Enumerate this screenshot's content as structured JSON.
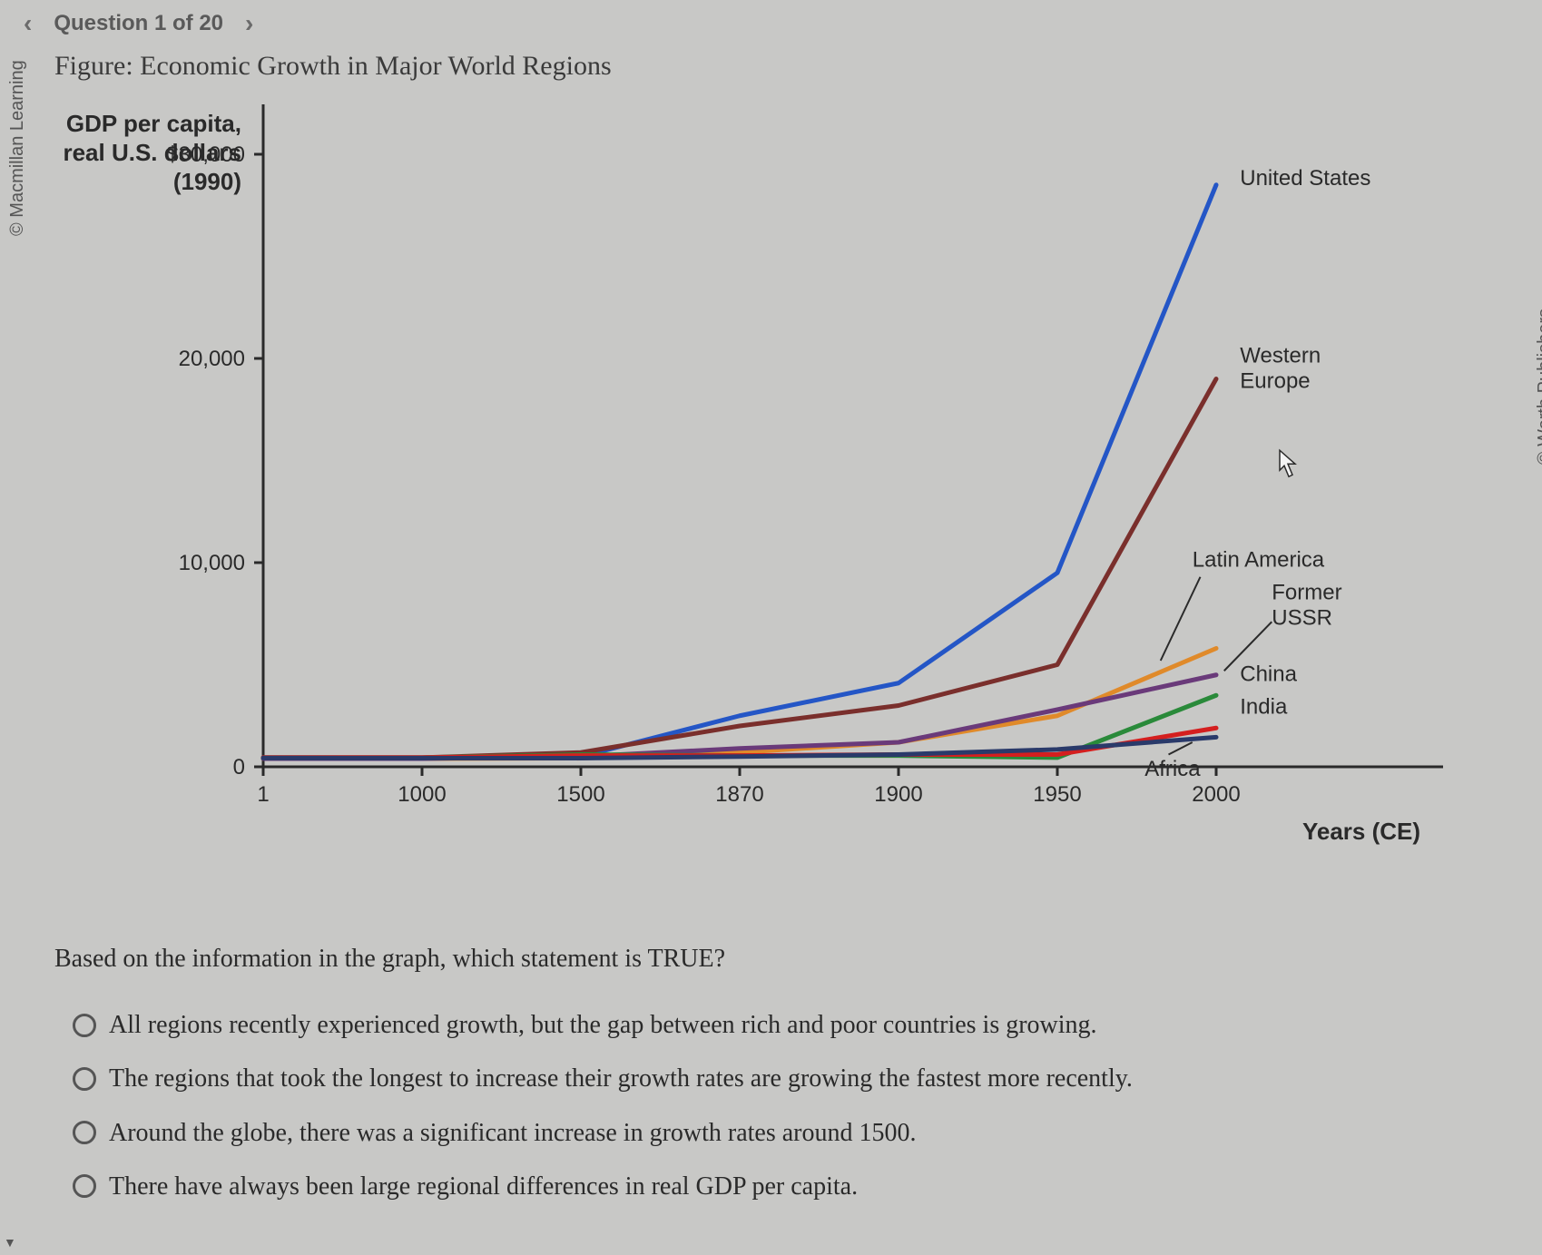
{
  "nav": {
    "prev_glyph": "‹",
    "next_glyph": "›",
    "counter_text": "Question 1 of 20"
  },
  "figure_title": "Figure: Economic Growth in Major World Regions",
  "credits": {
    "left": "© Macmillan Learning",
    "right": "© Worth Publishers"
  },
  "chart": {
    "type": "line",
    "y_axis": {
      "title_line1": "GDP per capita,",
      "title_line2": "real U.S. dollars",
      "title_line3": "(1990)",
      "title_fontsize": 26,
      "title_weight": "bold",
      "ticks": [
        {
          "value": 30000,
          "label": "$30,000"
        },
        {
          "value": 20000,
          "label": "20,000"
        },
        {
          "value": 10000,
          "label": "10,000"
        },
        {
          "value": 0,
          "label": "0"
        }
      ],
      "ylim": [
        0,
        32000
      ],
      "tick_fontsize": 24
    },
    "x_axis": {
      "title": "Years (CE)",
      "title_fontsize": 26,
      "title_weight": "bold",
      "ticks": [
        "1",
        "1000",
        "1500",
        "1870",
        "1900",
        "1950",
        "2000"
      ],
      "tick_fontsize": 24
    },
    "axis_color": "#2a2a2a",
    "axis_width": 3,
    "tick_length": 10,
    "background_color": "#c8c8c6",
    "line_width": 5,
    "series": [
      {
        "name": "United States",
        "color": "#2456c6",
        "label_pos_idx": 6.15,
        "label_pos_val": 28500,
        "points": [
          {
            "idx": 0,
            "val": 450
          },
          {
            "idx": 1,
            "val": 450
          },
          {
            "idx": 2,
            "val": 500
          },
          {
            "idx": 3,
            "val": 2500
          },
          {
            "idx": 4,
            "val": 4100
          },
          {
            "idx": 5,
            "val": 9500
          },
          {
            "idx": 6,
            "val": 28500
          }
        ]
      },
      {
        "name": "Western Europe",
        "color": "#7a2f2c",
        "label_pos_idx": 6.15,
        "label_pos_val": 19800,
        "label_two_lines": true,
        "label_line1": "Western",
        "label_line2": "Europe",
        "points": [
          {
            "idx": 0,
            "val": 450
          },
          {
            "idx": 1,
            "val": 450
          },
          {
            "idx": 2,
            "val": 700
          },
          {
            "idx": 3,
            "val": 2000
          },
          {
            "idx": 4,
            "val": 3000
          },
          {
            "idx": 5,
            "val": 5000
          },
          {
            "idx": 6,
            "val": 19000
          }
        ]
      },
      {
        "name": "Latin America",
        "color": "#e08a2a",
        "label_pos_idx": 5.85,
        "label_pos_val": 9800,
        "points": [
          {
            "idx": 0,
            "val": 400
          },
          {
            "idx": 1,
            "val": 400
          },
          {
            "idx": 2,
            "val": 420
          },
          {
            "idx": 3,
            "val": 700
          },
          {
            "idx": 4,
            "val": 1200
          },
          {
            "idx": 5,
            "val": 2500
          },
          {
            "idx": 6,
            "val": 5800
          }
        ]
      },
      {
        "name": "Former USSR",
        "color": "#6a3a7a",
        "label_pos_idx": 6.35,
        "label_pos_val": 8200,
        "label_two_lines": true,
        "label_line1": "Former",
        "label_line2": "USSR",
        "points": [
          {
            "idx": 0,
            "val": 400
          },
          {
            "idx": 1,
            "val": 400
          },
          {
            "idx": 2,
            "val": 500
          },
          {
            "idx": 3,
            "val": 900
          },
          {
            "idx": 4,
            "val": 1200
          },
          {
            "idx": 5,
            "val": 2800
          },
          {
            "idx": 6,
            "val": 4500
          }
        ]
      },
      {
        "name": "China",
        "color": "#2a8a3a",
        "label_pos_idx": 6.15,
        "label_pos_val": 4200,
        "points": [
          {
            "idx": 0,
            "val": 450
          },
          {
            "idx": 1,
            "val": 450
          },
          {
            "idx": 2,
            "val": 600
          },
          {
            "idx": 3,
            "val": 550
          },
          {
            "idx": 4,
            "val": 550
          },
          {
            "idx": 5,
            "val": 450
          },
          {
            "idx": 6,
            "val": 3500
          }
        ]
      },
      {
        "name": "India",
        "color": "#d41f1f",
        "label_pos_idx": 6.15,
        "label_pos_val": 2600,
        "points": [
          {
            "idx": 0,
            "val": 450
          },
          {
            "idx": 1,
            "val": 450
          },
          {
            "idx": 2,
            "val": 550
          },
          {
            "idx": 3,
            "val": 550
          },
          {
            "idx": 4,
            "val": 600
          },
          {
            "idx": 5,
            "val": 600
          },
          {
            "idx": 6,
            "val": 1900
          }
        ]
      },
      {
        "name": "Africa",
        "color": "#2a3a6a",
        "label_pos_idx": 5.55,
        "label_pos_val": 900,
        "label_below": true,
        "points": [
          {
            "idx": 0,
            "val": 430
          },
          {
            "idx": 1,
            "val": 420
          },
          {
            "idx": 2,
            "val": 420
          },
          {
            "idx": 3,
            "val": 500
          },
          {
            "idx": 4,
            "val": 600
          },
          {
            "idx": 5,
            "val": 850
          },
          {
            "idx": 6,
            "val": 1450
          }
        ]
      }
    ],
    "leader_lines": [
      {
        "from_idx": 5.9,
        "from_val": 9300,
        "to_idx": 5.65,
        "to_val": 5200,
        "color": "#2a2a2a"
      },
      {
        "from_idx": 6.35,
        "from_val": 7100,
        "to_idx": 6.05,
        "to_val": 4700,
        "color": "#2a2a2a"
      },
      {
        "from_idx": 5.7,
        "from_val": 600,
        "to_idx": 5.85,
        "to_val": 1200,
        "color": "#2a2a2a"
      }
    ],
    "cursor_arrow": {
      "idx": 6.4,
      "val": 15500
    }
  },
  "question": {
    "prompt": "Based on the information in the graph, which statement is TRUE?",
    "options": [
      "All regions recently experienced growth, but the gap between rich and poor countries is growing.",
      "The regions that took the longest to increase their growth rates are growing the fastest more recently.",
      "Around the globe, there was a significant increase in growth rates around 1500.",
      "There have always been large regional differences in real GDP per capita."
    ]
  }
}
